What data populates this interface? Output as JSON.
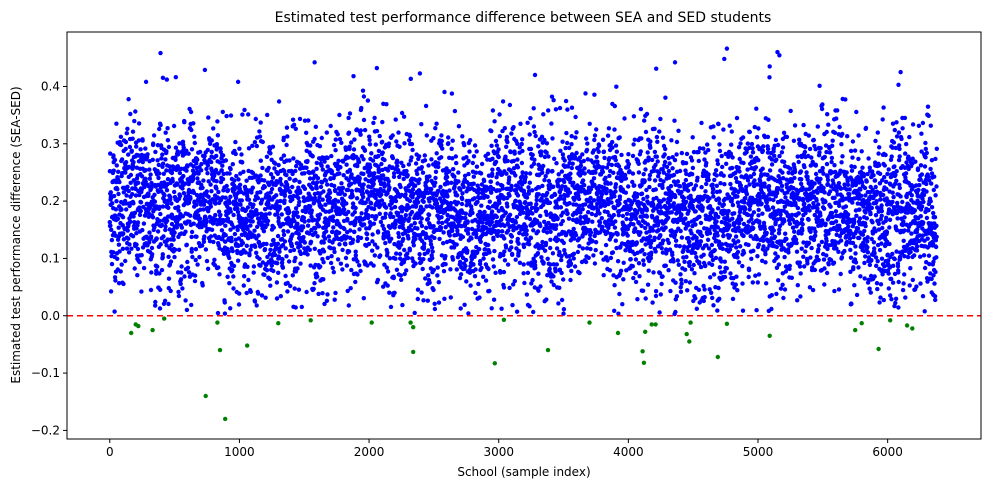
{
  "chart_data": {
    "type": "scatter",
    "title": "Estimated test performance difference between SEA and SED students",
    "xlabel": "School (sample index)",
    "ylabel": "Estimated test performance difference (SEA-SED)",
    "xlim": [
      -330,
      6720
    ],
    "ylim": [
      -0.215,
      0.495
    ],
    "x_ticks": [
      0,
      1000,
      2000,
      3000,
      4000,
      5000,
      6000
    ],
    "x_tick_labels": [
      "0",
      "1000",
      "2000",
      "3000",
      "4000",
      "5000",
      "6000"
    ],
    "y_ticks": [
      -0.2,
      -0.1,
      0.0,
      0.1,
      0.2,
      0.3,
      0.4
    ],
    "y_tick_labels": [
      "−0.2",
      "−0.1",
      "0.0",
      "0.1",
      "0.2",
      "0.3",
      "0.4"
    ],
    "grid": false,
    "reference_line": {
      "y": 0.0,
      "color": "#ff0000",
      "style": "dashed"
    },
    "colors": {
      "positive": "#0000ff",
      "negative": "#008000"
    },
    "series": [
      {
        "color": "#008000",
        "points": [
          [
            165,
            -0.03
          ],
          [
            200,
            -0.015
          ],
          [
            220,
            -0.018
          ],
          [
            330,
            -0.025
          ],
          [
            420,
            -0.005
          ],
          [
            740,
            -0.14
          ],
          [
            830,
            -0.012
          ],
          [
            850,
            -0.06
          ],
          [
            890,
            -0.18
          ],
          [
            1060,
            -0.052
          ],
          [
            1300,
            -0.013
          ],
          [
            1550,
            -0.008
          ],
          [
            2020,
            -0.012
          ],
          [
            2320,
            -0.012
          ],
          [
            2340,
            -0.02
          ],
          [
            2340,
            -0.063
          ],
          [
            3040,
            -0.007
          ],
          [
            2970,
            -0.083
          ],
          [
            3380,
            -0.06
          ],
          [
            3700,
            -0.012
          ],
          [
            3920,
            -0.03
          ],
          [
            4110,
            -0.062
          ],
          [
            4120,
            -0.082
          ],
          [
            4130,
            -0.028
          ],
          [
            4180,
            -0.015
          ],
          [
            4210,
            -0.015
          ],
          [
            4450,
            -0.032
          ],
          [
            4470,
            -0.045
          ],
          [
            4480,
            -0.012
          ],
          [
            4690,
            -0.072
          ],
          [
            4760,
            -0.014
          ],
          [
            5090,
            -0.035
          ],
          [
            5750,
            -0.025
          ],
          [
            5800,
            -0.013
          ],
          [
            5930,
            -0.058
          ],
          [
            6020,
            -0.008
          ],
          [
            6150,
            -0.017
          ],
          [
            6190,
            -0.022
          ]
        ]
      }
    ]
  }
}
